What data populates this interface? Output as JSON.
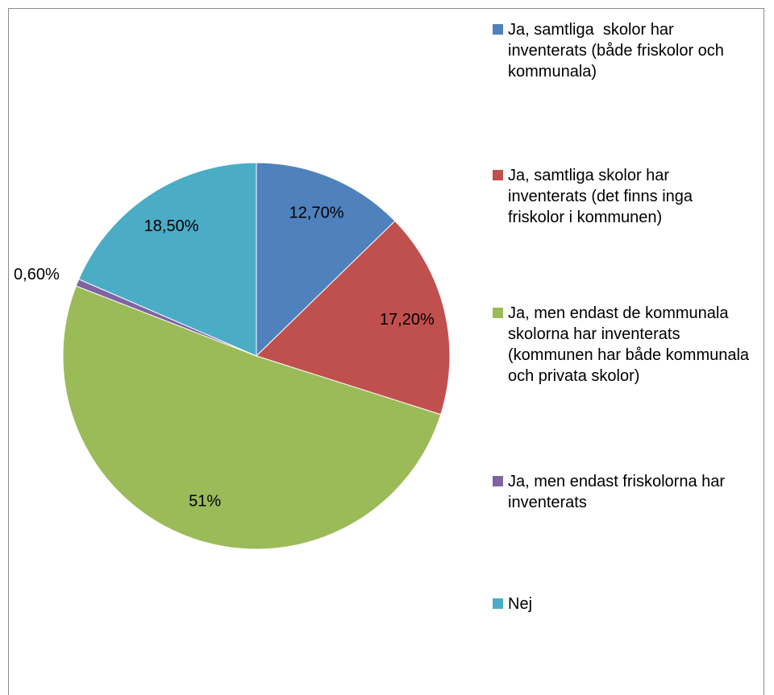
{
  "chart_data": {
    "type": "pie",
    "categories": [
      "Ja, samtliga  skolor har inventerats (både friskolor och kommunala)",
      "Ja, samtliga skolor har inventerats (det finns inga friskolor i kommunen)",
      "Ja, men endast de kommunala skolorna har inventerats (kommunen har både kommunala och privata skolor)",
      "Ja, men endast friskolorna har inventerats",
      "Nej"
    ],
    "values": [
      12.7,
      17.2,
      51,
      0.6,
      18.5
    ],
    "value_labels": [
      "12,70%",
      "17,20%",
      "51%",
      "0,60%",
      "18,50%"
    ],
    "colors": [
      "#4f81bd",
      "#c0504d",
      "#9bbb59",
      "#8064a2",
      "#4bacc6"
    ],
    "legend": "right"
  }
}
